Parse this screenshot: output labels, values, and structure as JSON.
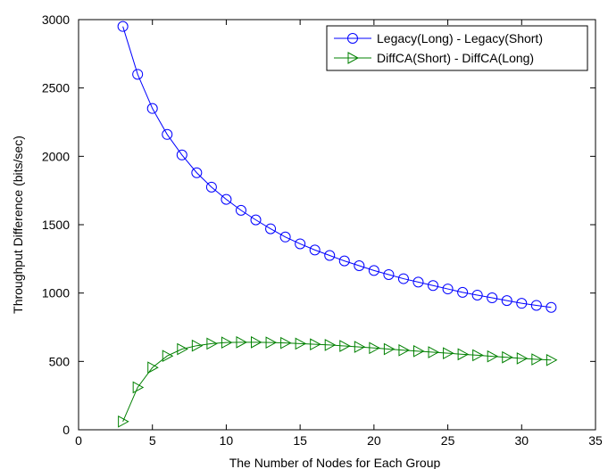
{
  "chart_data": {
    "type": "line",
    "title": "",
    "xlabel": "The Number of Nodes for Each Group",
    "ylabel": "Throughput Difference (bits/sec)",
    "xlim": [
      0,
      35
    ],
    "ylim": [
      0,
      3000
    ],
    "xticks": [
      0,
      5,
      10,
      15,
      20,
      25,
      30,
      35
    ],
    "yticks": [
      0,
      500,
      1000,
      1500,
      2000,
      2500,
      3000
    ],
    "grid": false,
    "legend_position": "top-right",
    "x": [
      3,
      4,
      5,
      6,
      7,
      8,
      9,
      10,
      11,
      12,
      13,
      14,
      15,
      16,
      17,
      18,
      19,
      20,
      21,
      22,
      23,
      24,
      25,
      26,
      27,
      28,
      29,
      30,
      31,
      32
    ],
    "series": [
      {
        "name": "Legacy(Long) - Legacy(Short)",
        "color": "#0000ff",
        "marker": "circle",
        "values": [
          2950,
          2600,
          2350,
          2160,
          2010,
          1880,
          1775,
          1685,
          1605,
          1535,
          1470,
          1410,
          1360,
          1315,
          1275,
          1235,
          1200,
          1165,
          1135,
          1105,
          1080,
          1055,
          1030,
          1005,
          985,
          965,
          945,
          925,
          910,
          895
        ]
      },
      {
        "name": "DiffCA(Short) - DiffCA(Long)",
        "color": "#008000",
        "marker": "triangle-right",
        "values": [
          60,
          310,
          455,
          540,
          590,
          615,
          630,
          638,
          640,
          640,
          638,
          635,
          630,
          625,
          620,
          613,
          606,
          598,
          590,
          582,
          575,
          567,
          560,
          552,
          545,
          537,
          530,
          522,
          515,
          510
        ]
      }
    ]
  }
}
